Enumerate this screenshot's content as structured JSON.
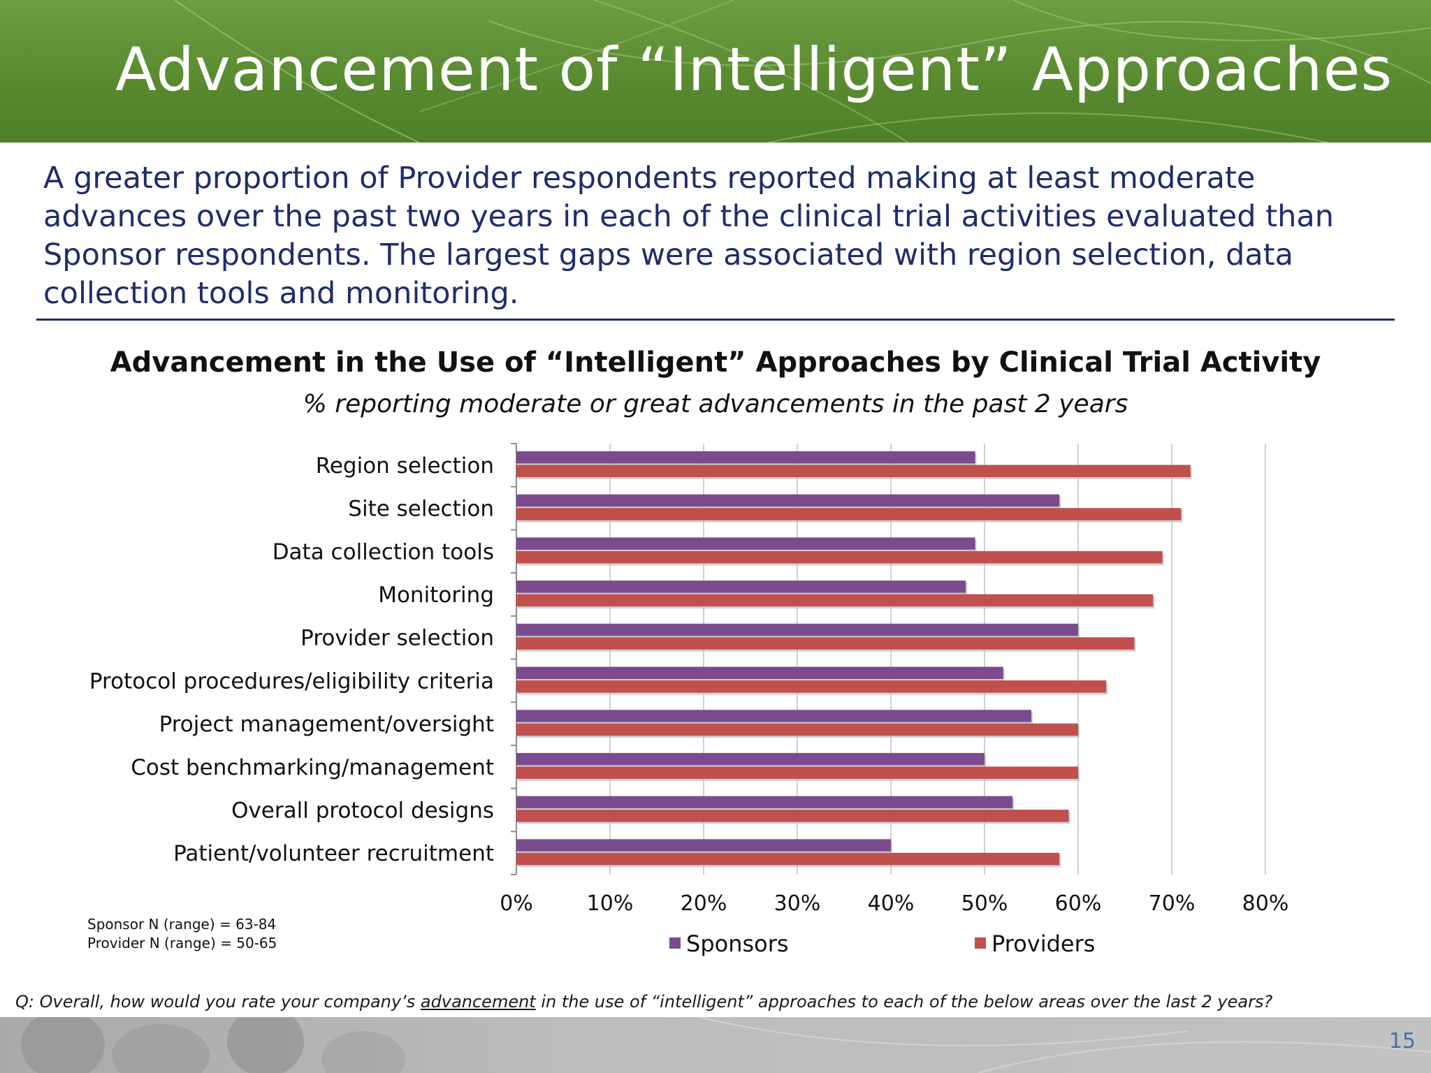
{
  "slide": {
    "title": "Advancement of “Intelligent” Approaches",
    "summary": "A greater proportion of Provider respondents reported making at least moderate advances over the past two years in each of the clinical trial activities evaluated than Sponsor respondents. The largest gaps were associated with region selection, data collection tools and monitoring.",
    "sample_sizes": [
      "Sponsor N (range) = 63-84",
      "Provider N (range) = 50-65"
    ],
    "question_before": "Q: Overall, how would you rate your company’s ",
    "question_underlined": "advancement",
    "question_after": " in the use of “intelligent” approaches to each of the below areas over the last 2 years?",
    "page_number": "15",
    "colors": {
      "header_green": "#5e8f33",
      "summary_navy": "#1f2d6b",
      "sponsors": "#7b4b8e",
      "providers": "#c0504d"
    }
  },
  "chart_data": {
    "type": "bar",
    "orientation": "horizontal",
    "title": "Advancement in the Use of “Intelligent” Approaches by Clinical Trial Activity",
    "subtitle": "% reporting moderate or great advancements in the past 2 years",
    "categories": [
      "Region selection",
      "Site selection",
      "Data collection tools",
      "Monitoring",
      "Provider selection",
      "Protocol procedures/eligibility criteria",
      "Project management/oversight",
      "Cost benchmarking/management",
      "Overall protocol designs",
      "Patient/volunteer recruitment"
    ],
    "series": [
      {
        "name": "Sponsors",
        "color": "#7b4b8e",
        "values": [
          49,
          58,
          49,
          48,
          60,
          52,
          55,
          50,
          53,
          40
        ]
      },
      {
        "name": "Providers",
        "color": "#c0504d",
        "values": [
          72,
          71,
          69,
          68,
          66,
          63,
          60,
          60,
          59,
          58
        ]
      }
    ],
    "xlim": [
      0,
      80
    ],
    "xticks": [
      "0%",
      "10%",
      "20%",
      "30%",
      "40%",
      "50%",
      "60%",
      "70%",
      "80%"
    ],
    "grid": true,
    "legend_position": "bottom"
  }
}
